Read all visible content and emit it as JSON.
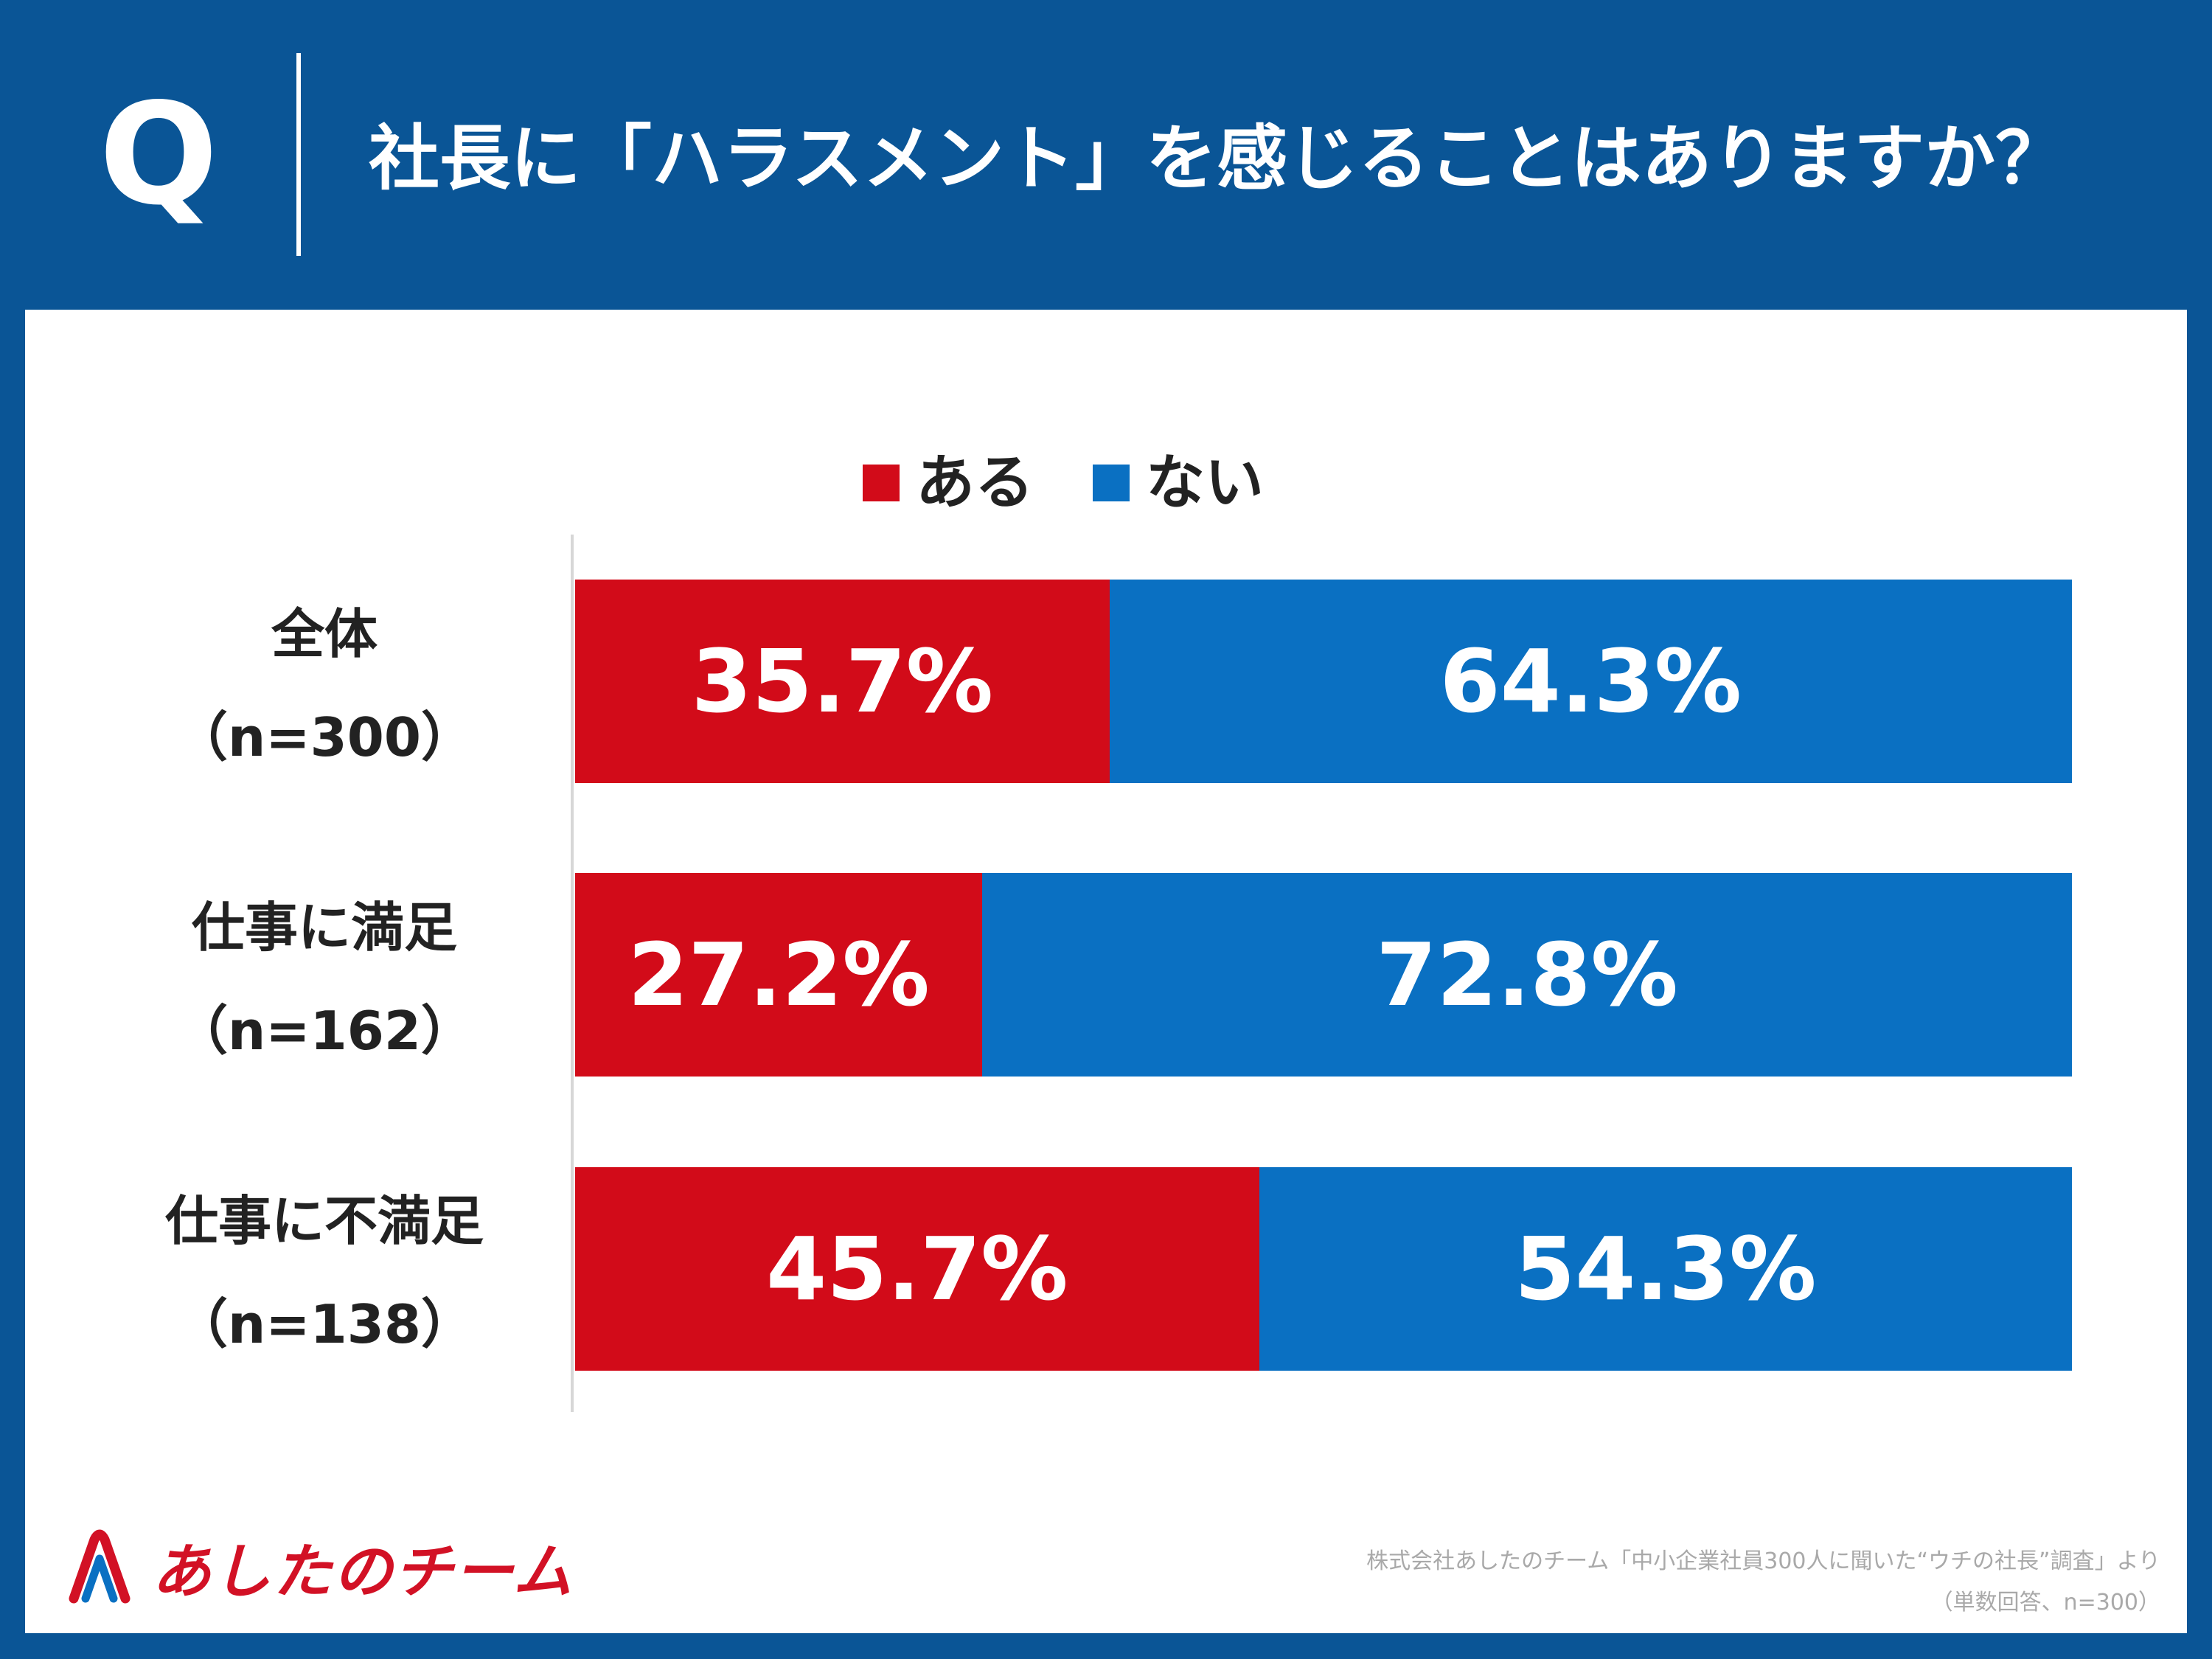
{
  "header": {
    "q_letter": "Q",
    "question": "社長に「ハラスメント」を感じることはありますか？",
    "background_color": "#0a5596"
  },
  "chart_data": {
    "type": "bar",
    "orientation": "horizontal",
    "stacked": true,
    "categories": [
      "全体",
      "仕事に満足",
      "仕事に不満足"
    ],
    "category_sample_sizes": [
      "（n=300）",
      "（n=162）",
      "（n=138）"
    ],
    "series": [
      {
        "name": "ある",
        "values": [
          35.7,
          27.2,
          45.7
        ],
        "labels": [
          "35.7%",
          "27.2%",
          "45.7%"
        ],
        "color": "#d20b19"
      },
      {
        "name": "ない",
        "values": [
          64.3,
          72.8,
          54.3
        ],
        "labels": [
          "64.3%",
          "72.8%",
          "54.3%"
        ],
        "color": "#0a70c2"
      }
    ],
    "xlim": [
      0,
      100
    ],
    "legend_position": "top-center",
    "grid": false
  },
  "logo": {
    "text": "あしたのチーム",
    "icon": "paperclip-a-logo-icon",
    "brand_color": "#d21125"
  },
  "source": {
    "line1": "株式会社あしたのチーム「中小企業社員300人に聞いた“ウチの社長”調査」より",
    "line2": "（単数回答、n=300）"
  }
}
